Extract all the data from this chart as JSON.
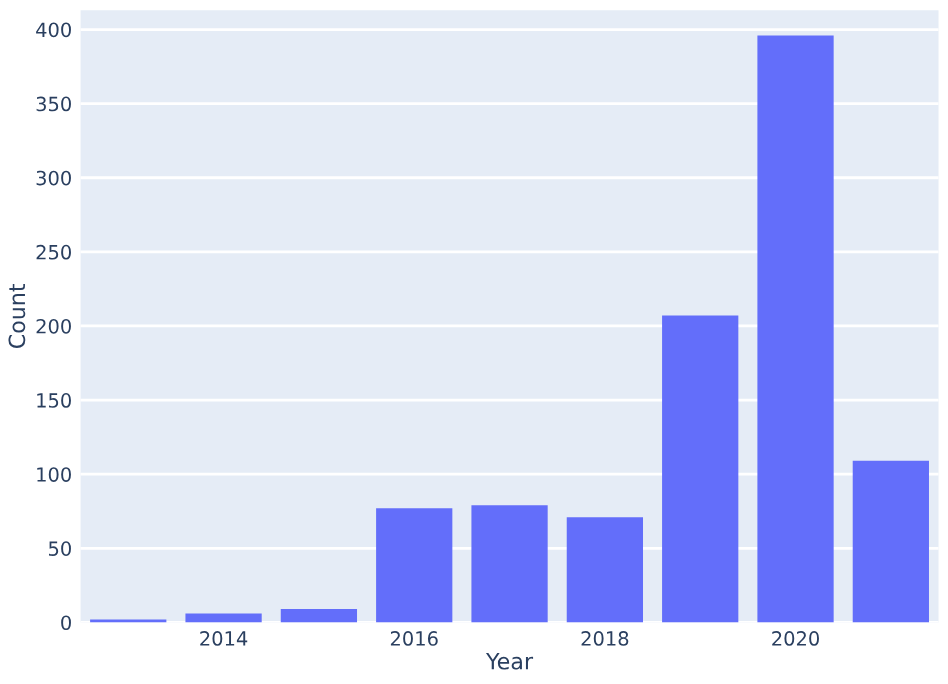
{
  "chart_data": {
    "type": "bar",
    "xlabel": "Year",
    "ylabel": "Count",
    "x": [
      2013,
      2014,
      2015,
      2016,
      2017,
      2018,
      2019,
      2020,
      2021
    ],
    "values": [
      2,
      6,
      9,
      77,
      79,
      71,
      207,
      396,
      109
    ],
    "color": "#636efa",
    "xlim": [
      2012.5,
      2021.5
    ],
    "xticks": [
      2014,
      2016,
      2018,
      2020
    ],
    "ylim": [
      0,
      413
    ],
    "yticks": [
      0,
      50,
      100,
      150,
      200,
      250,
      300,
      350,
      400
    ],
    "grid": "y"
  }
}
